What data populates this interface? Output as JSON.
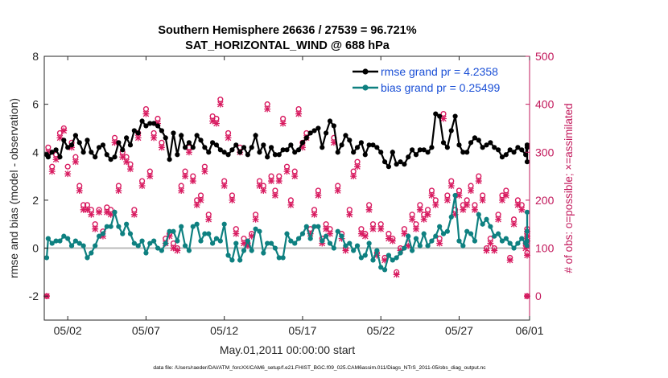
{
  "chart_data": {
    "type": "line",
    "title_line1": "Southern Hemisphere 26636 / 27539 = 96.721%",
    "title_line2": "SAT_HORIZONTAL_WIND @ 688 hPa",
    "xlabel": "May.01,2011 00:00:00 start",
    "ylabel_left": "rmse and bias (model - observation)",
    "ylabel_right": "# of obs: o=possible; ×=assimilated",
    "footer": "data file: /Users/raeder/DAI/ATM_forcXX/CAM6_setup/f.e21.FHIST_BGC.f09_025.CAM6assim.011/Diags_NTrS_2011-05/obs_diag_output.nc",
    "xlim": [
      0.5,
      31.5
    ],
    "ylim_left": [
      -3,
      8
    ],
    "ylim_right": [
      -50,
      500
    ],
    "x_ticks": [
      {
        "value": 2,
        "label": "05/02"
      },
      {
        "value": 7,
        "label": "05/07"
      },
      {
        "value": 12,
        "label": "05/12"
      },
      {
        "value": 17,
        "label": "05/17"
      },
      {
        "value": 22,
        "label": "05/22"
      },
      {
        "value": 27,
        "label": "05/27"
      },
      {
        "value": 32,
        "label": "06/01"
      }
    ],
    "y_ticks_left": [
      -2,
      0,
      2,
      4,
      6,
      8
    ],
    "y_ticks_right": [
      0,
      100,
      200,
      300,
      400,
      500
    ],
    "zero_line": 0,
    "legend_position": "top-right",
    "colors": {
      "rmse": "#000000",
      "bias": "#0e8080",
      "obs": "#d81b60",
      "right_axis": "#c2185b",
      "legend_text": "#1a4fd6",
      "zero_line": "#bbbbbb"
    },
    "series": [
      {
        "name": "rmse grand pr = 4.2358",
        "x_start": 0.5,
        "x_step": 0.25,
        "values": [
          3.9,
          3.8,
          4.0,
          4.1,
          3.8,
          4.5,
          4.2,
          4.3,
          4.7,
          4.4,
          4.0,
          4.5,
          4.0,
          3.8,
          4.2,
          4.3,
          3.9,
          3.7,
          3.8,
          4.4,
          4.1,
          4.6,
          4.3,
          4.9,
          4.8,
          5.3,
          5.1,
          5.2,
          5.2,
          5.1,
          4.9,
          4.6,
          3.7,
          4.8,
          3.9,
          4.7,
          4.2,
          4.4,
          4.2,
          4.7,
          4.5,
          4.2,
          4.0,
          4.4,
          4.3,
          4.1,
          4.0,
          3.9,
          4.1,
          4.3,
          4.0,
          4.2,
          3.9,
          4.2,
          4.7,
          4.0,
          4.3,
          3.8,
          4.2,
          3.9,
          3.9,
          4.1,
          4.1,
          4.3,
          4.0,
          4.1,
          4.4,
          4.6,
          4.8,
          4.9,
          5.0,
          4.2,
          4.8,
          5.3,
          5.1,
          4.0,
          4.3,
          4.7,
          4.5,
          4.0,
          4.2,
          4.4,
          3.9,
          4.3,
          4.3,
          4.2,
          4.0,
          3.6,
          3.4,
          4.0,
          3.5,
          3.6,
          3.5,
          3.8,
          4.1,
          3.9,
          4.1,
          4.1,
          4.0,
          4.2,
          5.6,
          5.5,
          4.4,
          4.2,
          4.9,
          5.5,
          4.3,
          4.0,
          4.0,
          4.4,
          4.6,
          4.5,
          4.2,
          4.3,
          4.4,
          4.2,
          4.1,
          3.8,
          3.9,
          4.1,
          4.0,
          4.2,
          4.1,
          3.9,
          4.3,
          4.2,
          3.6,
          4.3
        ]
      },
      {
        "name": "bias grand pr = 0.25499",
        "x_start": 0.5,
        "x_step": 0.25,
        "values": [
          -0.4,
          0.4,
          0.2,
          0.3,
          0.3,
          0.5,
          0.4,
          0.1,
          0.3,
          0.2,
          0.1,
          -0.4,
          -0.2,
          0.1,
          0.5,
          0.6,
          0.9,
          0.9,
          1.5,
          0.9,
          0.6,
          1.0,
          0.6,
          0.2,
          0.1,
          0.3,
          -0.2,
          0.2,
          0.3,
          0.0,
          -0.1,
          0.2,
          0.7,
          0.7,
          0.3,
          0.9,
          0.1,
          -0.1,
          0.9,
          1.0,
          0.3,
          0.6,
          0.6,
          0.2,
          0.4,
          0.3,
          1.0,
          -0.3,
          -0.5,
          0.2,
          -0.5,
          -0.1,
          0.3,
          -0.1,
          0.8,
          0.7,
          -0.2,
          0.2,
          0.2,
          0.0,
          -0.4,
          -0.4,
          0.6,
          0.3,
          0.2,
          0.4,
          0.6,
          0.9,
          0.4,
          0.9,
          0.9,
          0.3,
          0.5,
          0.2,
          0.0,
          0.7,
          0.5,
          0.1,
          0.2,
          -0.1,
          0.1,
          -0.4,
          -0.3,
          0.2,
          -0.5,
          -0.1,
          -0.8,
          -0.9,
          -0.3,
          -0.5,
          -0.4,
          -0.2,
          0.0,
          0.5,
          -0.1,
          0.4,
          0.1,
          0.6,
          0.1,
          0.3,
          0.5,
          0.9,
          0.6,
          0.7,
          1.3,
          2.2,
          0.3,
          0.1,
          0.7,
          0.6,
          0.3,
          1.4,
          1.0,
          1.2,
          0.9,
          0.5,
          0.6,
          0.3,
          0.4,
          0.2,
          0.0,
          0.2,
          0.4,
          0.2,
          0.7,
          0.1,
          1.5,
          0.3
        ]
      }
    ],
    "obs_possible": {
      "x_start": 0.5,
      "x_step": 0.25,
      "values": [
        0,
        310,
        270,
        295,
        340,
        350,
        270,
        320,
        290,
        230,
        190,
        190,
        180,
        150,
        180,
        135,
        185,
        180,
        330,
        230,
        300,
        290,
        275,
        180,
        340,
        240,
        390,
        260,
        340,
        370,
        320,
        120,
        130,
        110,
        100,
        230,
        260,
        310,
        250,
        200,
        210,
        270,
        170,
        375,
        370,
        410,
        240,
        340,
        210,
        140,
        310,
        120,
        110,
        130,
        170,
        240,
        230,
        400,
        250,
        220,
        250,
        370,
        270,
        200,
        260,
        390,
        320,
        340,
        140,
        180,
        220,
        120,
        150,
        140,
        330,
        230,
        130,
        100,
        180,
        260,
        280,
        140,
        130,
        190,
        150,
        90,
        150,
        80,
        130,
        120,
        50,
        100,
        140,
        110,
        170,
        150,
        190,
        170,
        180,
        220,
        200,
        120,
        380,
        210,
        240,
        180,
        220,
        190,
        200,
        230,
        190,
        250,
        210,
        100,
        120,
        100,
        170,
        210,
        220,
        80,
        160,
        200,
        190,
        110,
        120,
        130,
        120,
        90,
        140,
        0
      ]
    },
    "obs_assimilated": {
      "x_start": 0.5,
      "x_step": 0.25,
      "values": [
        0,
        300,
        260,
        285,
        330,
        345,
        255,
        310,
        280,
        220,
        180,
        180,
        170,
        140,
        175,
        125,
        175,
        170,
        320,
        220,
        290,
        280,
        265,
        170,
        330,
        230,
        380,
        250,
        330,
        360,
        310,
        110,
        125,
        100,
        95,
        220,
        250,
        300,
        240,
        190,
        200,
        260,
        160,
        365,
        360,
        400,
        230,
        330,
        200,
        130,
        300,
        110,
        105,
        125,
        160,
        230,
        220,
        390,
        240,
        210,
        240,
        360,
        260,
        190,
        250,
        380,
        310,
        330,
        130,
        170,
        210,
        110,
        140,
        130,
        320,
        220,
        120,
        95,
        170,
        250,
        270,
        130,
        125,
        180,
        140,
        85,
        140,
        75,
        120,
        115,
        45,
        95,
        130,
        105,
        160,
        140,
        180,
        160,
        170,
        210,
        190,
        110,
        370,
        200,
        230,
        170,
        210,
        180,
        190,
        220,
        180,
        240,
        200,
        95,
        110,
        95,
        160,
        200,
        210,
        75,
        150,
        190,
        180,
        100,
        115,
        125,
        115,
        85,
        135,
        0
      ]
    }
  }
}
